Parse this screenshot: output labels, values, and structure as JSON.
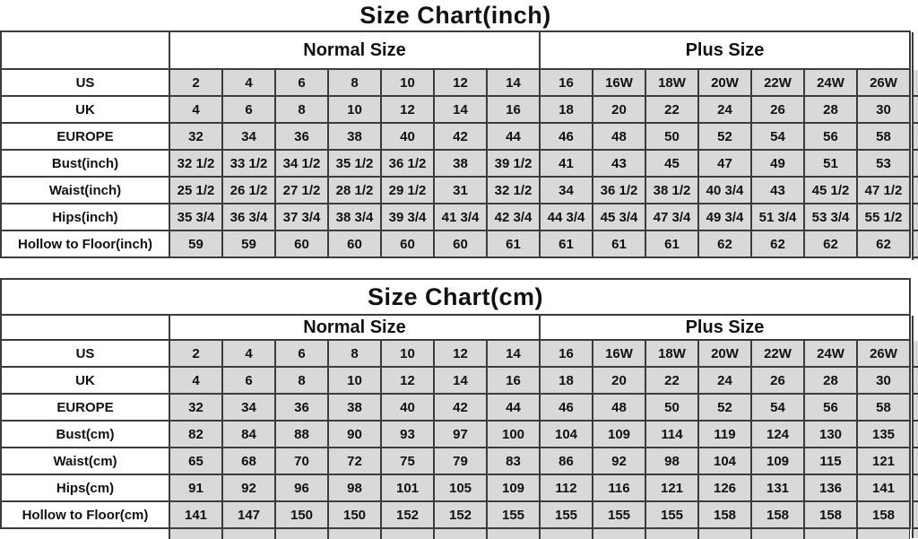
{
  "colors": {
    "cell_fill": "#d9d9d9",
    "grid_line": "#3c3c3c",
    "text": "#111111",
    "background": "#ffffff"
  },
  "chart_data": [
    {
      "type": "table",
      "title": "Size Chart(inch)",
      "group_headers": [
        "Normal Size",
        "Plus Size"
      ],
      "group_spans": [
        7,
        7
      ],
      "rows": [
        {
          "label": "US",
          "values": [
            "2",
            "4",
            "6",
            "8",
            "10",
            "12",
            "14",
            "16",
            "16W",
            "18W",
            "20W",
            "22W",
            "24W",
            "26W"
          ]
        },
        {
          "label": "UK",
          "values": [
            "4",
            "6",
            "8",
            "10",
            "12",
            "14",
            "16",
            "18",
            "20",
            "22",
            "24",
            "26",
            "28",
            "30"
          ]
        },
        {
          "label": "EUROPE",
          "values": [
            "32",
            "34",
            "36",
            "38",
            "40",
            "42",
            "44",
            "46",
            "48",
            "50",
            "52",
            "54",
            "56",
            "58"
          ]
        },
        {
          "label": "Bust(inch)",
          "values": [
            "32 1/2",
            "33 1/2",
            "34 1/2",
            "35 1/2",
            "36 1/2",
            "38",
            "39 1/2",
            "41",
            "43",
            "45",
            "47",
            "49",
            "51",
            "53"
          ]
        },
        {
          "label": "Waist(inch)",
          "values": [
            "25 1/2",
            "26 1/2",
            "27 1/2",
            "28 1/2",
            "29 1/2",
            "31",
            "32 1/2",
            "34",
            "36 1/2",
            "38 1/2",
            "40 3/4",
            "43",
            "45 1/2",
            "47 1/2"
          ]
        },
        {
          "label": "Hips(inch)",
          "values": [
            "35 3/4",
            "36 3/4",
            "37 3/4",
            "38 3/4",
            "39 3/4",
            "41 3/4",
            "42 3/4",
            "44 3/4",
            "45 3/4",
            "47 3/4",
            "49 3/4",
            "51 3/4",
            "53 3/4",
            "55 1/2"
          ]
        },
        {
          "label": "Hollow to Floor(inch)",
          "values": [
            "59",
            "59",
            "60",
            "60",
            "60",
            "60",
            "61",
            "61",
            "61",
            "61",
            "62",
            "62",
            "62",
            "62"
          ]
        }
      ]
    },
    {
      "type": "table",
      "title": "Size Chart(cm)",
      "group_headers": [
        "Normal Size",
        "Plus Size"
      ],
      "group_spans": [
        7,
        7
      ],
      "rows": [
        {
          "label": "US",
          "values": [
            "2",
            "4",
            "6",
            "8",
            "10",
            "12",
            "14",
            "16",
            "16W",
            "18W",
            "20W",
            "22W",
            "24W",
            "26W"
          ]
        },
        {
          "label": "UK",
          "values": [
            "4",
            "6",
            "8",
            "10",
            "12",
            "14",
            "16",
            "18",
            "20",
            "22",
            "24",
            "26",
            "28",
            "30"
          ]
        },
        {
          "label": "EUROPE",
          "values": [
            "32",
            "34",
            "36",
            "38",
            "40",
            "42",
            "44",
            "46",
            "48",
            "50",
            "52",
            "54",
            "56",
            "58"
          ]
        },
        {
          "label": "Bust(cm)",
          "values": [
            "82",
            "84",
            "88",
            "90",
            "93",
            "97",
            "100",
            "104",
            "109",
            "114",
            "119",
            "124",
            "130",
            "135"
          ]
        },
        {
          "label": "Waist(cm)",
          "values": [
            "65",
            "68",
            "70",
            "72",
            "75",
            "79",
            "83",
            "86",
            "92",
            "98",
            "104",
            "109",
            "115",
            "121"
          ]
        },
        {
          "label": "Hips(cm)",
          "values": [
            "91",
            "92",
            "96",
            "98",
            "101",
            "105",
            "109",
            "112",
            "116",
            "121",
            "126",
            "131",
            "136",
            "141"
          ]
        },
        {
          "label": "Hollow to Floor(cm)",
          "values": [
            "141",
            "147",
            "150",
            "150",
            "152",
            "152",
            "155",
            "155",
            "155",
            "155",
            "158",
            "158",
            "158",
            "158"
          ]
        }
      ]
    }
  ]
}
